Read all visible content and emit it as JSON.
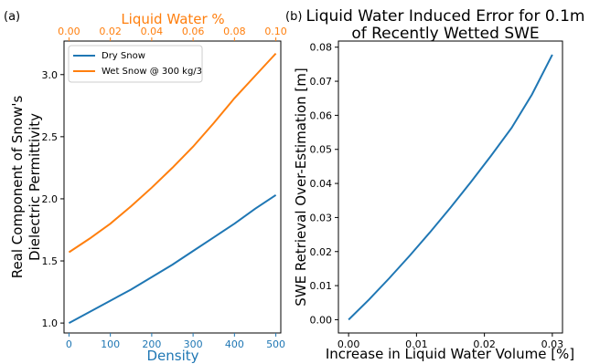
{
  "panels": {
    "left": {
      "label": "(a)"
    },
    "right": {
      "label": "(b)"
    }
  },
  "colors": {
    "dry": "#1f77b4",
    "wet": "#ff7f0e",
    "axis": "#000000"
  },
  "chart_data": [
    {
      "type": "line",
      "xlabel": "Density",
      "x_ticks": [
        "0",
        "100",
        "200",
        "300",
        "400",
        "500"
      ],
      "xlim": [
        -12,
        512
      ],
      "top_xlabel": "Liquid Water %",
      "top_x_ticks": [
        "0.00",
        "0.02",
        "0.04",
        "0.06",
        "0.08",
        "0.10"
      ],
      "top_xlim": [
        -0.0024,
        0.1024
      ],
      "ylabel": [
        "Real Component of Snow's",
        "Dielectric Permittivity"
      ],
      "y_ticks": [
        "1.0",
        "1.5",
        "2.0",
        "2.5",
        "3.0"
      ],
      "ylim": [
        0.92,
        3.27
      ],
      "legend": "top-left",
      "series": [
        {
          "name": "Dry Snow",
          "axis": "bottom",
          "color": "#1f77b4",
          "x": [
            0,
            50,
            100,
            150,
            200,
            250,
            300,
            350,
            400,
            450,
            500
          ],
          "y": [
            1.0,
            1.09,
            1.18,
            1.27,
            1.37,
            1.47,
            1.58,
            1.69,
            1.8,
            1.92,
            2.03
          ]
        },
        {
          "name": "Wet Snow @ 300 kg/3",
          "axis": "top",
          "color": "#ff7f0e",
          "x": [
            0,
            0.01,
            0.02,
            0.03,
            0.04,
            0.05,
            0.06,
            0.07,
            0.08,
            0.09,
            0.1
          ],
          "y": [
            1.57,
            1.68,
            1.8,
            1.94,
            2.09,
            2.25,
            2.42,
            2.61,
            2.81,
            2.99,
            3.17
          ]
        }
      ]
    },
    {
      "type": "line",
      "title": [
        "Liquid Water Induced Error for 0.1m",
        "of Recently Wetted SWE"
      ],
      "xlabel": "Increase in Liquid Water Volume [%]",
      "x_ticks": [
        "0.00",
        "0.01",
        "0.02",
        "0.03"
      ],
      "xlim": [
        -0.0015,
        0.0315
      ],
      "ylabel": "SWE Retrieval Over-Estimation [m]",
      "y_ticks": [
        "0.00",
        "0.01",
        "0.02",
        "0.03",
        "0.04",
        "0.05",
        "0.06",
        "0.07",
        "0.08"
      ],
      "ylim": [
        -0.0039,
        0.0818
      ],
      "series": [
        {
          "color": "#1f77b4",
          "x": [
            0,
            0.003,
            0.006,
            0.009,
            0.012,
            0.015,
            0.018,
            0.021,
            0.024,
            0.027,
            0.03
          ],
          "y": [
            0,
            0.0059,
            0.0122,
            0.0188,
            0.0257,
            0.0329,
            0.0404,
            0.0482,
            0.0563,
            0.0661,
            0.0778
          ]
        }
      ]
    }
  ]
}
